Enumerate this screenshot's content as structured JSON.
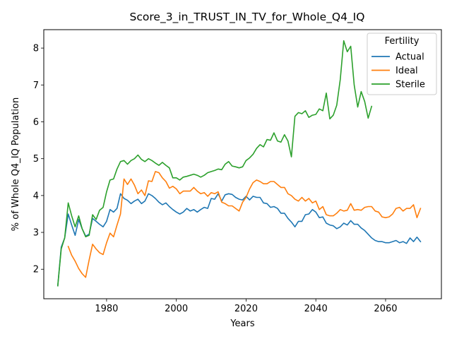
{
  "chart_data": {
    "type": "line",
    "title": "Score_3_in_TRUST_IN_TV_for_Whole_Q4_IQ",
    "xlabel": "Years",
    "ylabel": "% of Whole Q4_IQ Population",
    "xlim": [
      1962,
      2076
    ],
    "ylim": [
      1.2,
      8.5
    ],
    "xticks": [
      1980,
      2000,
      2020,
      2040,
      2060
    ],
    "yticks": [
      2,
      3,
      4,
      5,
      6,
      7,
      8
    ],
    "grid": false,
    "legend": {
      "title": "Fertility",
      "placement": "top-right"
    },
    "series": [
      {
        "name": "Actual",
        "color": "#1f77b4",
        "x": [
          1966,
          1967,
          1968,
          1969,
          1970,
          1971,
          1972,
          1973,
          1974,
          1975,
          1976,
          1977,
          1978,
          1979,
          1980,
          1981,
          1982,
          1983,
          1984,
          1985,
          1986,
          1987,
          1988,
          1989,
          1990,
          1991,
          1992,
          1993,
          1994,
          1995,
          1996,
          1997,
          1998,
          1999,
          2000,
          2001,
          2002,
          2003,
          2004,
          2005,
          2006,
          2007,
          2008,
          2009,
          2010,
          2011,
          2012,
          2013,
          2014,
          2015,
          2016,
          2017,
          2018,
          2019,
          2020,
          2021,
          2022,
          2023,
          2024,
          2025,
          2026,
          2027,
          2028,
          2029,
          2030,
          2031,
          2032,
          2033,
          2034,
          2035,
          2036,
          2037,
          2038,
          2039,
          2040,
          2041,
          2042,
          2043,
          2044,
          2045,
          2046,
          2047,
          2048,
          2049,
          2050,
          2051,
          2052,
          2053,
          2054,
          2055,
          2056,
          2057,
          2058,
          2059,
          2060,
          2061,
          2062,
          2063,
          2064,
          2065,
          2066,
          2067,
          2068,
          2069,
          2070
        ],
        "y": [
          1.55,
          2.6,
          2.85,
          3.5,
          3.2,
          2.92,
          3.35,
          3.1,
          2.9,
          2.95,
          3.38,
          3.3,
          3.22,
          3.15,
          3.3,
          3.62,
          3.55,
          3.65,
          4.05,
          3.92,
          3.87,
          3.78,
          3.85,
          3.9,
          3.78,
          3.85,
          4.05,
          4.0,
          3.92,
          3.82,
          3.75,
          3.8,
          3.7,
          3.62,
          3.55,
          3.5,
          3.55,
          3.65,
          3.58,
          3.62,
          3.55,
          3.62,
          3.68,
          3.65,
          3.92,
          3.9,
          4.05,
          3.85,
          4.02,
          4.05,
          4.03,
          3.95,
          3.9,
          3.88,
          3.98,
          3.88,
          3.98,
          3.95,
          3.95,
          3.8,
          3.78,
          3.68,
          3.7,
          3.65,
          3.52,
          3.52,
          3.38,
          3.28,
          3.15,
          3.3,
          3.3,
          3.48,
          3.5,
          3.62,
          3.55,
          3.4,
          3.42,
          3.25,
          3.2,
          3.18,
          3.1,
          3.15,
          3.25,
          3.2,
          3.32,
          3.22,
          3.22,
          3.12,
          3.05,
          2.95,
          2.85,
          2.78,
          2.75,
          2.75,
          2.72,
          2.72,
          2.75,
          2.78,
          2.72,
          2.75,
          2.7,
          2.85,
          2.75,
          2.87,
          2.75
        ]
      },
      {
        "name": "Ideal",
        "color": "#ff7f0e",
        "x": [
          1969,
          1970,
          1971,
          1972,
          1973,
          1974,
          1975,
          1976,
          1977,
          1978,
          1979,
          1980,
          1981,
          1982,
          1983,
          1984,
          1985,
          1986,
          1987,
          1988,
          1989,
          1990,
          1991,
          1992,
          1993,
          1994,
          1995,
          1996,
          1997,
          1998,
          1999,
          2000,
          2001,
          2002,
          2003,
          2004,
          2005,
          2006,
          2007,
          2008,
          2009,
          2010,
          2011,
          2012,
          2013,
          2014,
          2015,
          2016,
          2017,
          2018,
          2019,
          2020,
          2021,
          2022,
          2023,
          2024,
          2025,
          2026,
          2027,
          2028,
          2029,
          2030,
          2031,
          2032,
          2033,
          2034,
          2035,
          2036,
          2037,
          2038,
          2039,
          2040,
          2041,
          2042,
          2043,
          2044,
          2045,
          2046,
          2047,
          2048,
          2049,
          2050,
          2051,
          2052,
          2053,
          2054,
          2055,
          2056,
          2057,
          2058,
          2059,
          2060,
          2061,
          2062,
          2063,
          2064,
          2065,
          2066,
          2067,
          2068,
          2069,
          2070
        ],
        "y": [
          2.62,
          2.38,
          2.22,
          2.02,
          1.88,
          1.78,
          2.25,
          2.68,
          2.55,
          2.45,
          2.4,
          2.72,
          2.98,
          2.88,
          3.2,
          3.5,
          4.45,
          4.3,
          4.45,
          4.28,
          4.05,
          4.15,
          4.0,
          4.4,
          4.38,
          4.65,
          4.62,
          4.48,
          4.38,
          4.2,
          4.25,
          4.18,
          4.05,
          4.12,
          4.12,
          4.12,
          4.22,
          4.12,
          4.05,
          4.08,
          3.98,
          4.08,
          4.05,
          4.1,
          3.82,
          3.78,
          3.72,
          3.72,
          3.65,
          3.58,
          3.82,
          3.95,
          4.18,
          4.35,
          4.42,
          4.38,
          4.32,
          4.32,
          4.38,
          4.38,
          4.3,
          4.22,
          4.22,
          4.05,
          4.0,
          3.9,
          3.85,
          3.95,
          3.85,
          3.92,
          3.8,
          3.85,
          3.62,
          3.7,
          3.48,
          3.45,
          3.45,
          3.52,
          3.62,
          3.58,
          3.6,
          3.78,
          3.6,
          3.62,
          3.6,
          3.68,
          3.7,
          3.7,
          3.58,
          3.55,
          3.42,
          3.4,
          3.42,
          3.5,
          3.65,
          3.68,
          3.58,
          3.65,
          3.65,
          3.75,
          3.4,
          3.65
        ]
      },
      {
        "name": "Sterile",
        "color": "#2ca02c",
        "x": [
          1966,
          1967,
          1968,
          1969,
          1970,
          1971,
          1972,
          1973,
          1974,
          1975,
          1976,
          1977,
          1978,
          1979,
          1980,
          1981,
          1982,
          1983,
          1984,
          1985,
          1986,
          1987,
          1988,
          1989,
          1990,
          1991,
          1992,
          1993,
          1994,
          1995,
          1996,
          1997,
          1998,
          1999,
          2000,
          2001,
          2002,
          2003,
          2004,
          2005,
          2006,
          2007,
          2008,
          2009,
          2010,
          2011,
          2012,
          2013,
          2014,
          2015,
          2016,
          2017,
          2018,
          2019,
          2020,
          2021,
          2022,
          2023,
          2024,
          2025,
          2026,
          2027,
          2028,
          2029,
          2030,
          2031,
          2032,
          2033,
          2034,
          2035,
          2036,
          2037,
          2038,
          2039,
          2040,
          2041,
          2042,
          2043,
          2044,
          2045,
          2046,
          2047,
          2048,
          2049,
          2050,
          2051,
          2052,
          2053,
          2054,
          2055,
          2056
        ],
        "y": [
          1.55,
          2.55,
          2.85,
          3.8,
          3.45,
          3.15,
          3.45,
          3.1,
          2.88,
          2.92,
          3.48,
          3.35,
          3.6,
          3.68,
          4.1,
          4.42,
          4.45,
          4.72,
          4.92,
          4.95,
          4.85,
          4.95,
          5.0,
          5.1,
          4.98,
          4.92,
          5.0,
          4.95,
          4.88,
          4.82,
          4.9,
          4.82,
          4.75,
          4.48,
          4.48,
          4.42,
          4.5,
          4.52,
          4.55,
          4.58,
          4.55,
          4.5,
          4.55,
          4.62,
          4.65,
          4.68,
          4.72,
          4.7,
          4.85,
          4.92,
          4.8,
          4.78,
          4.75,
          4.78,
          4.95,
          5.02,
          5.12,
          5.28,
          5.38,
          5.32,
          5.52,
          5.5,
          5.7,
          5.48,
          5.45,
          5.65,
          5.48,
          5.05,
          6.15,
          6.25,
          6.22,
          6.3,
          6.12,
          6.18,
          6.2,
          6.35,
          6.3,
          6.78,
          6.08,
          6.18,
          6.45,
          7.15,
          8.2,
          7.9,
          8.05,
          7.0,
          6.4,
          6.82,
          6.55,
          6.1,
          6.42
        ]
      }
    ]
  }
}
